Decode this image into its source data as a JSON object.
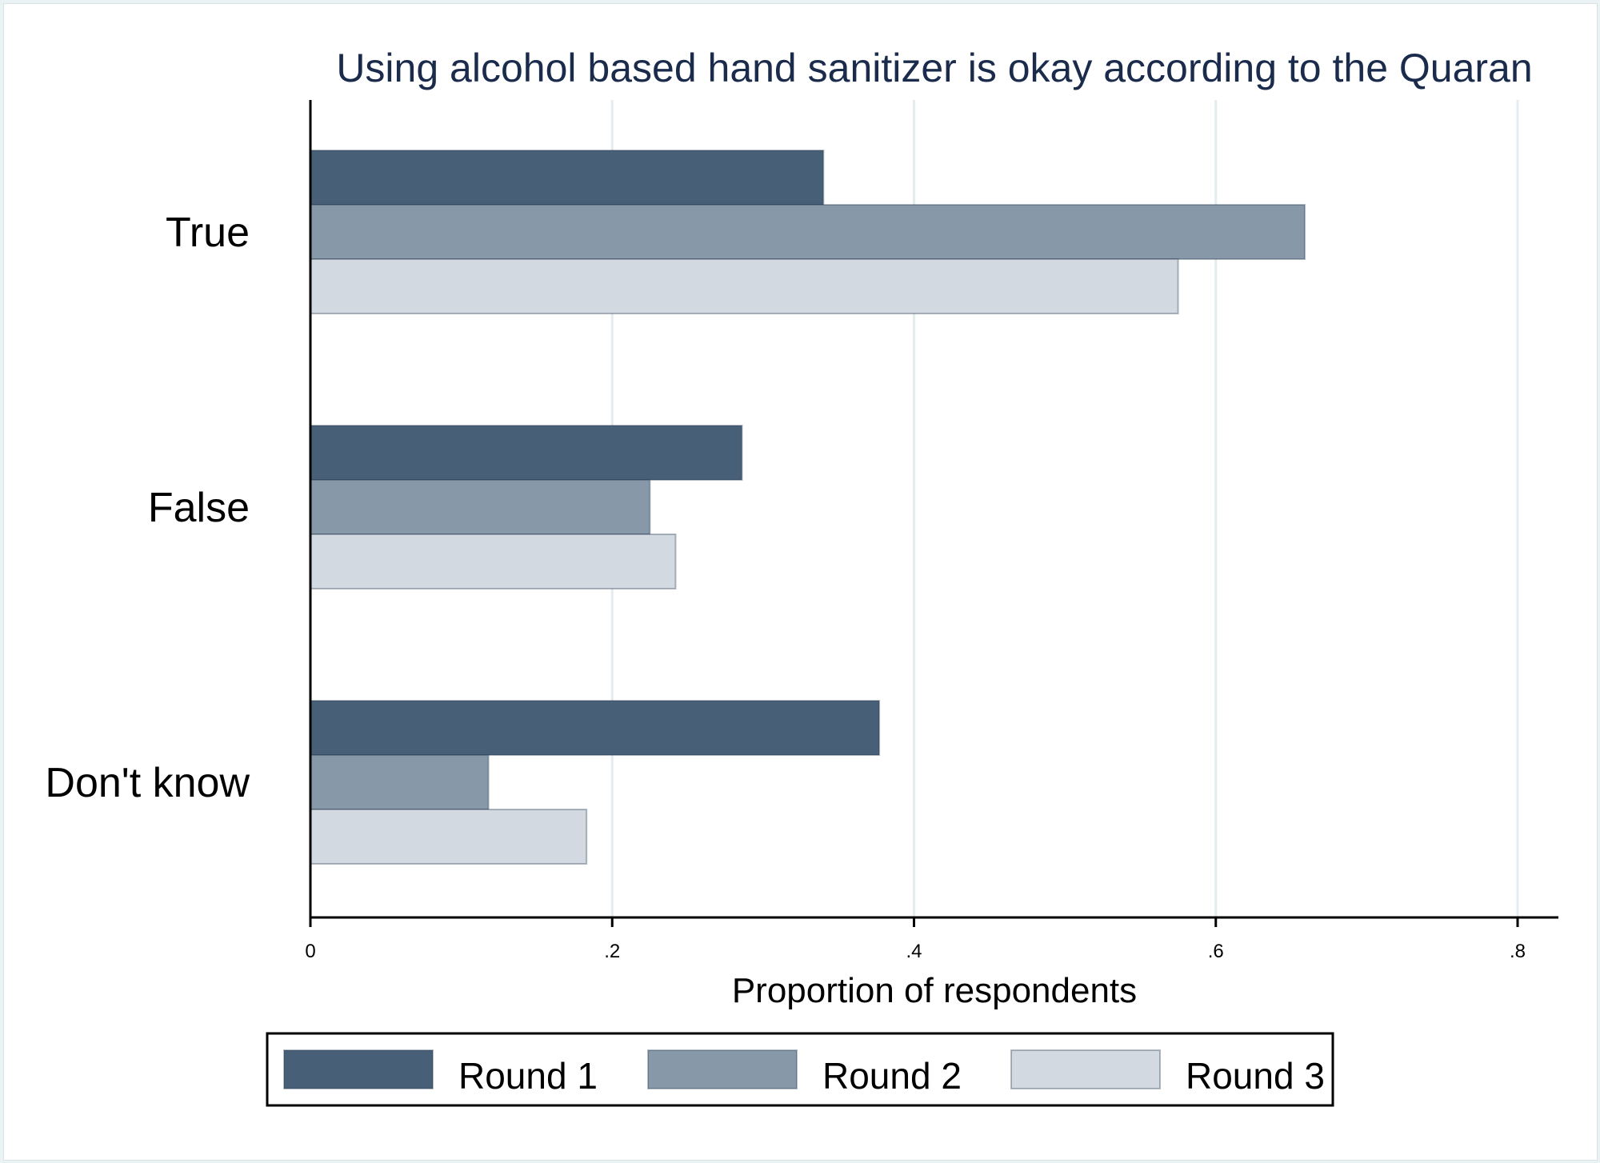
{
  "chart_data": {
    "type": "bar",
    "orientation": "horizontal",
    "title": "Using alcohol based hand sanitizer is okay according to the Quaran",
    "xlabel": "Proportion of respondents",
    "ylabel": "",
    "categories": [
      "True",
      "False",
      "Don't know"
    ],
    "series": [
      {
        "name": "Round 1",
        "values": [
          0.34,
          0.286,
          0.377
        ],
        "color": "#476078"
      },
      {
        "name": "Round 2",
        "values": [
          0.659,
          0.225,
          0.118
        ],
        "color": "#8799a8"
      },
      {
        "name": "Round 3",
        "values": [
          0.575,
          0.242,
          0.183
        ],
        "color": "#d3d9e0"
      }
    ],
    "xlim": [
      0,
      0.8
    ],
    "xticks": [
      0,
      0.2,
      0.4,
      0.6,
      0.8
    ],
    "xtick_labels": [
      "0",
      ".2",
      ".4",
      ".6",
      ".8"
    ],
    "grid": true,
    "legend_position": "bottom"
  },
  "colors": {
    "background": "#eaf2f3",
    "plot_background": "#ffffff",
    "grid": "#e3ecee",
    "title": "#1a2b4c"
  }
}
